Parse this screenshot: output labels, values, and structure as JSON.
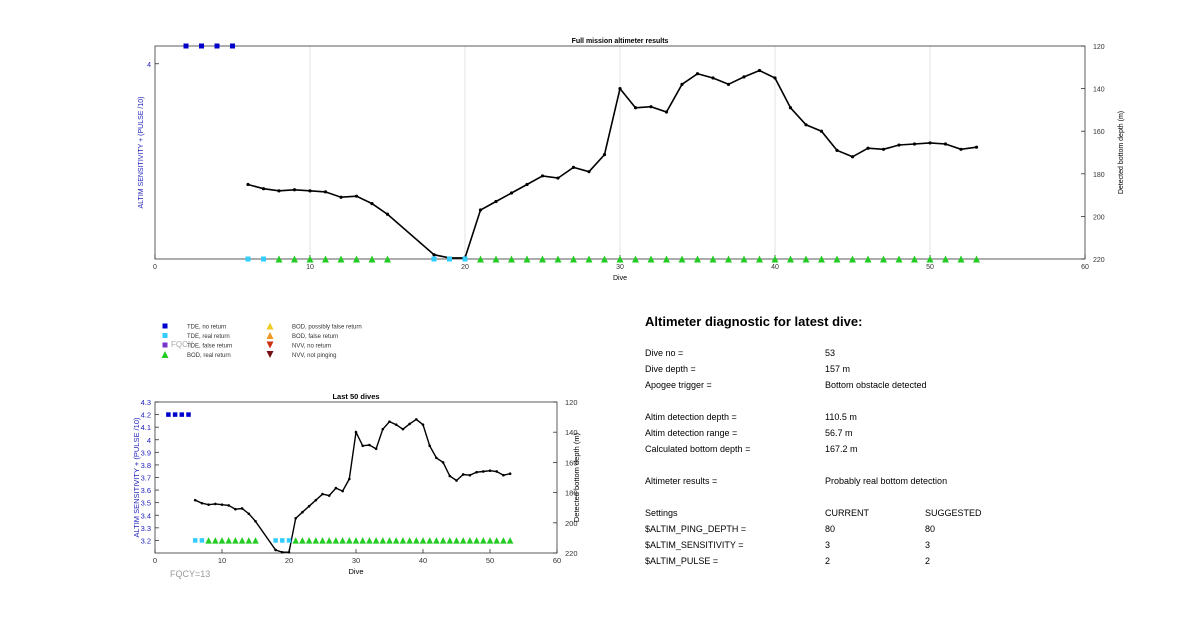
{
  "top_chart": {
    "type": "line",
    "title": "Full mission altimeter results",
    "xlabel": "Dive",
    "ylabel_left": "ALTIM SENSITIVITY + (PULSE /10)",
    "ylabel_right": "Detected bottom depth (m)",
    "xlim": [
      0,
      60
    ],
    "xticks": [
      "0",
      "10",
      "20",
      "30",
      "40",
      "50",
      "60"
    ],
    "left_ylim": [
      2.9,
      4.1
    ],
    "left_yticks": [
      "4"
    ],
    "right_ylim": [
      220,
      120
    ],
    "right_yticks": [
      "120",
      "140",
      "160",
      "180",
      "200",
      "220"
    ],
    "depth_series": [
      [
        6,
        185
      ],
      [
        7,
        187
      ],
      [
        8,
        188
      ],
      [
        9,
        187.5
      ],
      [
        10,
        188
      ],
      [
        11,
        188.5
      ],
      [
        12,
        191
      ],
      [
        13,
        190.5
      ],
      [
        14,
        194
      ],
      [
        15,
        199
      ],
      [
        18,
        218
      ],
      [
        19,
        219.5
      ],
      [
        20,
        219.5
      ],
      [
        21,
        197
      ],
      [
        22,
        193
      ],
      [
        23,
        189
      ],
      [
        24,
        185
      ],
      [
        25,
        181
      ],
      [
        26,
        182
      ],
      [
        27,
        177
      ],
      [
        28,
        179
      ],
      [
        29,
        171
      ],
      [
        30,
        140
      ],
      [
        31,
        149
      ],
      [
        32,
        148.5
      ],
      [
        33,
        151
      ],
      [
        34,
        138
      ],
      [
        35,
        133
      ],
      [
        36,
        135
      ],
      [
        37,
        138
      ],
      [
        38,
        134.5
      ],
      [
        39,
        131.5
      ],
      [
        40,
        135
      ],
      [
        41,
        149
      ],
      [
        42,
        157
      ],
      [
        43,
        160
      ],
      [
        44,
        169
      ],
      [
        45,
        172
      ],
      [
        46,
        168
      ],
      [
        47,
        168.5
      ],
      [
        48,
        166.5
      ],
      [
        49,
        166
      ],
      [
        50,
        165.5
      ],
      [
        51,
        166
      ],
      [
        52,
        168.5
      ],
      [
        53,
        167.5
      ]
    ],
    "tde_no_return_dives": [
      2,
      3,
      4,
      5
    ],
    "tde_no_return_level": 4.1,
    "tde_real_return_dives": [
      6,
      7,
      18,
      19,
      20
    ],
    "bod_real_return_dives": [
      8,
      9,
      10,
      11,
      12,
      13,
      14,
      15,
      21,
      22,
      23,
      24,
      25,
      26,
      27,
      28,
      29,
      30,
      31,
      32,
      33,
      34,
      35,
      36,
      37,
      38,
      39,
      40,
      41,
      42,
      43,
      44,
      45,
      46,
      47,
      48,
      49,
      50,
      51,
      52,
      53
    ],
    "return_marker_level": 2.9
  },
  "legend": {
    "items": [
      {
        "label": "TDE, no return",
        "color": "#0000cc",
        "marker": "square"
      },
      {
        "label": "TDE, real return",
        "color": "#33ccff",
        "marker": "square"
      },
      {
        "label": "TDE, false return",
        "color": "#7733cc",
        "marker": "square"
      },
      {
        "label": "BOD, real return",
        "color": "#22cc22",
        "marker": "triangle-up"
      },
      {
        "label": "BOD, possibly false return",
        "color": "#eecc22",
        "marker": "triangle-up"
      },
      {
        "label": "BOD, false return",
        "color": "#ee9922",
        "marker": "triangle-up"
      },
      {
        "label": "NVV, no return",
        "color": "#cc3311",
        "marker": "triangle-down"
      },
      {
        "label": "NVV, not pinging",
        "color": "#771111",
        "marker": "triangle-down"
      }
    ],
    "overlay_text": "FQCY"
  },
  "bottom_chart": {
    "type": "line",
    "title": "Last 50 dives",
    "xlabel": "Dive",
    "ylabel_left": "ALTIM SENSITIVITY + (PULSE /10)",
    "ylabel_right": "Detected bottom depth (m)",
    "xlim": [
      0,
      60
    ],
    "xticks": [
      "0",
      "10",
      "20",
      "30",
      "40",
      "50",
      "60"
    ],
    "left_ylim": [
      3.1,
      4.3
    ],
    "left_yticks": [
      "3.2",
      "3.3",
      "3.4",
      "3.5",
      "3.6",
      "3.7",
      "3.8",
      "3.9",
      "4",
      "4.1",
      "4.2",
      "4.3"
    ],
    "right_ylim": [
      220,
      120
    ],
    "right_yticks": [
      "120",
      "140",
      "160",
      "180",
      "200",
      "220"
    ],
    "tde_no_return_level": 4.2,
    "return_marker_level": 3.2,
    "footnote": "FQCY=13"
  },
  "diagnostic": {
    "title": "Altimeter diagnostic for latest dive:",
    "rows": [
      {
        "label": "Dive no =",
        "value": "53"
      },
      {
        "label": "Dive depth =",
        "value": "157 m"
      },
      {
        "label": "Apogee trigger =",
        "value": "Bottom obstacle detected"
      },
      {
        "label": "Altim detection depth =",
        "value": "110.5 m"
      },
      {
        "label": "Altim detection range =",
        "value": "56.7 m"
      },
      {
        "label": "Calculated bottom depth =",
        "value": "167.2 m"
      },
      {
        "label": "Altimeter results =",
        "value": "Probably real bottom detection"
      }
    ],
    "settings_header": {
      "label": "Settings",
      "current": "CURRENT",
      "suggested": "SUGGESTED"
    },
    "settings": [
      {
        "name": "$ALTIM_PING_DEPTH =",
        "current": "80",
        "suggested": "80"
      },
      {
        "name": "$ALTIM_SENSITIVITY =",
        "current": "3",
        "suggested": "3"
      },
      {
        "name": "$ALTIM_PULSE =",
        "current": "2",
        "suggested": "2"
      }
    ]
  },
  "colors": {
    "axis": "#333333",
    "grid": "#e3e3e3",
    "line": "#000000",
    "left_axis_label": "#2222bb",
    "tde_no_return": "#0000cc",
    "tde_real_return": "#33ccff",
    "bod_real_return": "#22cc22",
    "footnote": "#999999"
  }
}
